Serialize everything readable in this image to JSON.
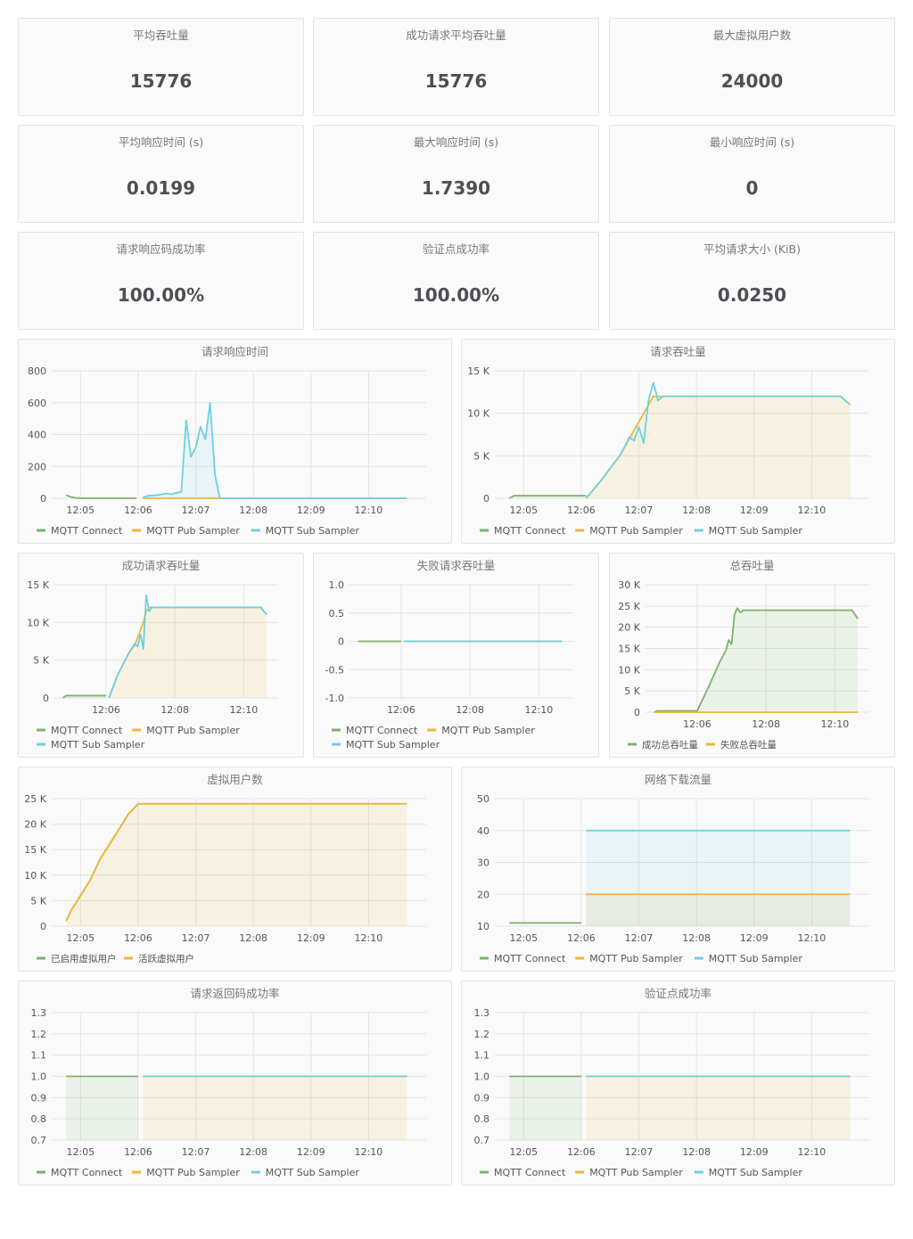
{
  "stats": [
    {
      "title": "平均吞吐量",
      "value": "15776"
    },
    {
      "title": "成功请求平均吞吐量",
      "value": "15776"
    },
    {
      "title": "最大虚拟用户数",
      "value": "24000"
    },
    {
      "title": "平均响应时间 (s)",
      "value": "0.0199"
    },
    {
      "title": "最大响应时间 (s)",
      "value": "1.7390"
    },
    {
      "title": "最小响应时间 (s)",
      "value": "0"
    },
    {
      "title": "请求响应码成功率",
      "value": "100.00%"
    },
    {
      "title": "验证点成功率",
      "value": "100.00%"
    },
    {
      "title": "平均请求大小 (KiB)",
      "value": "0.0250"
    }
  ],
  "colors": {
    "green": "#7eb26d",
    "yellow": "#eab839",
    "cyan": "#6ed0e0",
    "grid": "#e4e4e4",
    "panel_bg": "#fafafa",
    "border": "#e3e3e3"
  },
  "chart_data": [
    {
      "title": "请求响应时间",
      "type": "line",
      "x": [
        "12:04:45",
        "12:04:50",
        "12:04:55",
        "12:05:00",
        "12:05:10",
        "12:05:20",
        "12:05:30",
        "12:05:40",
        "12:05:50",
        "12:05:58",
        "12:06:05",
        "12:06:10",
        "12:06:20",
        "12:06:30",
        "12:06:35",
        "12:06:40",
        "12:06:45",
        "12:06:50",
        "12:06:55",
        "12:07:00",
        "12:07:05",
        "12:07:10",
        "12:07:15",
        "12:07:20",
        "12:07:25",
        "12:07:30",
        "12:08:00",
        "12:09:00",
        "12:10:00",
        "12:10:40"
      ],
      "xticks": [
        "12:05",
        "12:06",
        "12:07",
        "12:08",
        "12:09",
        "12:10"
      ],
      "yticks": [
        0,
        200,
        400,
        600,
        800
      ],
      "ylim": [
        0,
        800
      ],
      "series": [
        {
          "name": "MQTT Connect",
          "color": "#7eb26d",
          "fill": false,
          "values": [
            20,
            8,
            2,
            0,
            0,
            0,
            0,
            0,
            0,
            0,
            null,
            null,
            null,
            null,
            null,
            null,
            null,
            null,
            null,
            null,
            null,
            null,
            null,
            null,
            null,
            null,
            null,
            null,
            null,
            null
          ]
        },
        {
          "name": "MQTT Pub Sampler",
          "color": "#eab839",
          "fill": false,
          "values": [
            null,
            null,
            null,
            null,
            null,
            null,
            null,
            null,
            null,
            null,
            0,
            0,
            0,
            0,
            0,
            0,
            0,
            0,
            0,
            0,
            0,
            0,
            0,
            0,
            0,
            0,
            0,
            0,
            0,
            0
          ]
        },
        {
          "name": "MQTT Sub Sampler",
          "color": "#6ed0e0",
          "fill": true,
          "values": [
            null,
            null,
            null,
            null,
            null,
            null,
            null,
            null,
            null,
            null,
            5,
            15,
            20,
            30,
            25,
            35,
            40,
            490,
            260,
            320,
            450,
            370,
            600,
            150,
            0,
            0,
            0,
            0,
            0,
            0
          ]
        }
      ],
      "legend": [
        "MQTT Connect",
        "MQTT Pub Sampler",
        "MQTT Sub Sampler"
      ]
    },
    {
      "title": "请求吞吐量",
      "type": "line",
      "x": [
        "12:04:45",
        "12:04:50",
        "12:04:55",
        "12:05:30",
        "12:06:00",
        "12:06:05",
        "12:06:20",
        "12:06:30",
        "12:06:40",
        "12:06:45",
        "12:06:50",
        "12:06:55",
        "12:07:00",
        "12:07:05",
        "12:07:10",
        "12:07:15",
        "12:07:20",
        "12:07:25",
        "12:07:30",
        "12:08:00",
        "12:09:00",
        "12:09:30",
        "12:10:00",
        "12:10:30",
        "12:10:40"
      ],
      "xticks": [
        "12:05",
        "12:06",
        "12:07",
        "12:08",
        "12:09",
        "12:10"
      ],
      "yticks": [
        "0",
        "5 K",
        "10 K",
        "15 K"
      ],
      "ylim": [
        0,
        15000
      ],
      "series": [
        {
          "name": "MQTT Connect",
          "color": "#7eb26d",
          "fill": true,
          "values": [
            0,
            300,
            300,
            300,
            300,
            300,
            null,
            null,
            null,
            null,
            null,
            null,
            null,
            null,
            null,
            null,
            null,
            null,
            null,
            null,
            null,
            null,
            null,
            null,
            null
          ]
        },
        {
          "name": "MQTT Pub Sampler",
          "color": "#eab839",
          "fill": true,
          "values": [
            null,
            null,
            null,
            null,
            null,
            0,
            2000,
            3500,
            5000,
            6000,
            7000,
            8000,
            9000,
            10000,
            11000,
            12000,
            12000,
            12000,
            12000,
            12000,
            12000,
            12000,
            12000,
            12000,
            11000
          ]
        },
        {
          "name": "MQTT Sub Sampler",
          "color": "#6ed0e0",
          "fill": false,
          "values": [
            null,
            null,
            null,
            null,
            null,
            0,
            2000,
            3500,
            5000,
            6000,
            7200,
            6800,
            8400,
            6500,
            11500,
            13600,
            11500,
            12000,
            12000,
            12000,
            12000,
            12000,
            12000,
            12000,
            11000
          ]
        }
      ],
      "legend": [
        "MQTT Connect",
        "MQTT Pub Sampler",
        "MQTT Sub Sampler"
      ]
    },
    {
      "title": "成功请求吞吐量",
      "type": "line",
      "x": [
        "12:04:45",
        "12:04:50",
        "12:05:30",
        "12:06:00",
        "12:06:05",
        "12:06:20",
        "12:06:40",
        "12:06:50",
        "12:06:55",
        "12:07:00",
        "12:07:05",
        "12:07:10",
        "12:07:15",
        "12:07:20",
        "12:08:00",
        "12:09:00",
        "12:10:00",
        "12:10:30",
        "12:10:40"
      ],
      "xticks": [
        "12:06",
        "12:08",
        "12:10"
      ],
      "yticks": [
        "0",
        "5 K",
        "10 K",
        "15 K"
      ],
      "ylim": [
        0,
        15000
      ],
      "series": [
        {
          "name": "MQTT Connect",
          "color": "#7eb26d",
          "fill": true,
          "values": [
            0,
            300,
            300,
            300,
            null,
            null,
            null,
            null,
            null,
            null,
            null,
            null,
            null,
            null,
            null,
            null,
            null,
            null,
            null
          ]
        },
        {
          "name": "MQTT Pub Sampler",
          "color": "#eab839",
          "fill": true,
          "values": [
            null,
            null,
            null,
            null,
            0,
            3000,
            6000,
            7000,
            8000,
            9000,
            10000,
            11500,
            12000,
            12000,
            12000,
            12000,
            12000,
            12000,
            11000
          ]
        },
        {
          "name": "MQTT Sub Sampler",
          "color": "#6ed0e0",
          "fill": false,
          "values": [
            null,
            null,
            null,
            null,
            0,
            3000,
            6000,
            7200,
            6800,
            8400,
            6500,
            13600,
            11500,
            12000,
            12000,
            12000,
            12000,
            12000,
            11000
          ]
        }
      ],
      "legend": [
        "MQTT Connect",
        "MQTT Pub Sampler",
        "MQTT Sub Sampler"
      ]
    },
    {
      "title": "失败请求吞吐量",
      "type": "line",
      "x": [
        "12:04:45",
        "12:06:00",
        "12:06:05",
        "12:10:40"
      ],
      "xticks": [
        "12:06",
        "12:08",
        "12:10"
      ],
      "yticks": [
        "-1.0",
        "-0.5",
        "0",
        "0.5",
        "1.0"
      ],
      "ylim": [
        -1,
        1
      ],
      "series": [
        {
          "name": "MQTT Connect",
          "color": "#7eb26d",
          "fill": false,
          "values": [
            0,
            0,
            null,
            null
          ]
        },
        {
          "name": "MQTT Pub Sampler",
          "color": "#eab839",
          "fill": false,
          "values": [
            null,
            null,
            0,
            0
          ]
        },
        {
          "name": "MQTT Sub Sampler",
          "color": "#6ed0e0",
          "fill": false,
          "values": [
            null,
            null,
            0,
            0
          ]
        }
      ],
      "legend": [
        "MQTT Connect",
        "MQTT Pub Sampler",
        "MQTT Sub Sampler"
      ]
    },
    {
      "title": "总吞吐量",
      "type": "line",
      "x": [
        "12:04:45",
        "12:04:50",
        "12:05:30",
        "12:06:00",
        "12:06:20",
        "12:06:40",
        "12:06:50",
        "12:06:55",
        "12:07:00",
        "12:07:05",
        "12:07:10",
        "12:07:15",
        "12:07:20",
        "12:07:25",
        "12:08:00",
        "12:09:00",
        "12:09:30",
        "12:10:00",
        "12:10:30",
        "12:10:40"
      ],
      "xticks": [
        "12:06",
        "12:08",
        "12:10"
      ],
      "yticks": [
        "0",
        "5 K",
        "10 K",
        "15 K",
        "20 K",
        "25 K",
        "30 K"
      ],
      "ylim": [
        0,
        30000
      ],
      "series": [
        {
          "name": "成功总吞吐量",
          "color": "#7eb26d",
          "fill": true,
          "values": [
            0,
            300,
            300,
            300,
            6000,
            12000,
            14500,
            17000,
            16000,
            23000,
            24500,
            23500,
            24000,
            24000,
            24000,
            24000,
            24000,
            24000,
            24000,
            22000
          ]
        },
        {
          "name": "失败总吞吐量",
          "color": "#eab839",
          "fill": false,
          "values": [
            0,
            0,
            0,
            0,
            0,
            0,
            0,
            0,
            0,
            0,
            0,
            0,
            0,
            0,
            0,
            0,
            0,
            0,
            0,
            0
          ]
        }
      ],
      "legend": [
        "成功总吞吐量",
        "失败总吞吐量"
      ]
    },
    {
      "title": "虚拟用户数",
      "type": "area",
      "x": [
        "12:04:45",
        "12:04:50",
        "12:05:00",
        "12:05:10",
        "12:05:20",
        "12:05:30",
        "12:05:40",
        "12:05:50",
        "12:06:00",
        "12:07:00",
        "12:08:00",
        "12:09:00",
        "12:10:00",
        "12:10:40"
      ],
      "xticks": [
        "12:05",
        "12:06",
        "12:07",
        "12:08",
        "12:09",
        "12:10"
      ],
      "yticks": [
        "0",
        "5 K",
        "10 K",
        "15 K",
        "20 K",
        "25 K"
      ],
      "ylim": [
        0,
        25000
      ],
      "series": [
        {
          "name": "已启用虚拟用户",
          "color": "#7eb26d",
          "fill": false,
          "values": [
            1000,
            3000,
            6000,
            9000,
            13000,
            16000,
            19000,
            22000,
            24000,
            24000,
            24000,
            24000,
            24000,
            24000
          ]
        },
        {
          "name": "活跃虚拟用户",
          "color": "#eab839",
          "fill": true,
          "values": [
            1000,
            3000,
            6000,
            9000,
            13000,
            16000,
            19000,
            22000,
            24000,
            24000,
            24000,
            24000,
            24000,
            24000
          ]
        }
      ],
      "legend": [
        "已启用虚拟用户",
        "活跃虚拟用户"
      ]
    },
    {
      "title": "网络下载流量",
      "type": "line",
      "x": [
        "12:04:45",
        "12:06:00",
        "12:06:05",
        "12:10:40"
      ],
      "xticks": [
        "12:05",
        "12:06",
        "12:07",
        "12:08",
        "12:09",
        "12:10"
      ],
      "yticks": [
        10,
        20,
        30,
        40,
        50
      ],
      "ylim": [
        10,
        50
      ],
      "series": [
        {
          "name": "MQTT Connect",
          "color": "#7eb26d",
          "fill": false,
          "values": [
            11,
            11,
            null,
            null
          ]
        },
        {
          "name": "MQTT Pub Sampler",
          "color": "#eab839",
          "fill": true,
          "values": [
            null,
            null,
            20,
            20
          ]
        },
        {
          "name": "MQTT Sub Sampler",
          "color": "#6ed0e0",
          "fill": true,
          "values": [
            null,
            null,
            40,
            40
          ]
        }
      ],
      "legend": [
        "MQTT Connect",
        "MQTT Pub Sampler",
        "MQTT Sub Sampler"
      ]
    },
    {
      "title": "请求返回码成功率",
      "type": "line",
      "x": [
        "12:04:45",
        "12:06:00",
        "12:06:05",
        "12:10:40"
      ],
      "xticks": [
        "12:05",
        "12:06",
        "12:07",
        "12:08",
        "12:09",
        "12:10"
      ],
      "yticks": [
        "0.7",
        "0.8",
        "0.9",
        "1.0",
        "1.1",
        "1.2",
        "1.3"
      ],
      "ylim": [
        0.7,
        1.3
      ],
      "series": [
        {
          "name": "MQTT Connect",
          "color": "#7eb26d",
          "fill": true,
          "values": [
            1,
            1,
            null,
            null
          ]
        },
        {
          "name": "MQTT Pub Sampler",
          "color": "#eab839",
          "fill": true,
          "values": [
            null,
            null,
            1,
            1
          ]
        },
        {
          "name": "MQTT Sub Sampler",
          "color": "#6ed0e0",
          "fill": false,
          "values": [
            null,
            null,
            1,
            1
          ]
        }
      ],
      "legend": [
        "MQTT Connect",
        "MQTT Pub Sampler",
        "MQTT Sub Sampler"
      ]
    },
    {
      "title": "验证点成功率",
      "type": "line",
      "x": [
        "12:04:45",
        "12:06:00",
        "12:06:05",
        "12:10:40"
      ],
      "xticks": [
        "12:05",
        "12:06",
        "12:07",
        "12:08",
        "12:09",
        "12:10"
      ],
      "yticks": [
        "0.7",
        "0.8",
        "0.9",
        "1.0",
        "1.1",
        "1.2",
        "1.3"
      ],
      "ylim": [
        0.7,
        1.3
      ],
      "series": [
        {
          "name": "MQTT Connect",
          "color": "#7eb26d",
          "fill": true,
          "values": [
            1,
            1,
            null,
            null
          ]
        },
        {
          "name": "MQTT Pub Sampler",
          "color": "#eab839",
          "fill": true,
          "values": [
            null,
            null,
            1,
            1
          ]
        },
        {
          "name": "MQTT Sub Sampler",
          "color": "#6ed0e0",
          "fill": false,
          "values": [
            null,
            null,
            1,
            1
          ]
        }
      ],
      "legend": [
        "MQTT Connect",
        "MQTT Pub Sampler",
        "MQTT Sub Sampler"
      ]
    }
  ]
}
